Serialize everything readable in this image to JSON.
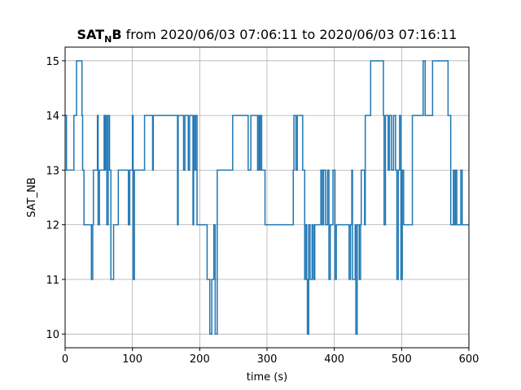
{
  "chart_data": {
    "type": "line",
    "step": true,
    "title_bold": "SAT",
    "title_subscript": "N",
    "title_bold_suffix": "B",
    "title_rest": " from 2020/06/03 07:06:11 to 2020/06/03 07:16:11",
    "xlabel": "time (s)",
    "ylabel": "SAT_NB",
    "xlim": [
      0,
      600
    ],
    "ylim": [
      9.75,
      15.25
    ],
    "xticks": [
      0,
      100,
      200,
      300,
      400,
      500,
      600
    ],
    "xtick_labels": [
      "0",
      "100",
      "200",
      "300",
      "400",
      "500",
      "600"
    ],
    "yticks": [
      10,
      11,
      12,
      13,
      14,
      15
    ],
    "ytick_labels": [
      "10",
      "11",
      "12",
      "13",
      "14",
      "15"
    ],
    "grid": true,
    "color": "#1f77b4",
    "series": [
      {
        "points": [
          [
            0,
            14
          ],
          [
            2,
            13
          ],
          [
            13,
            14
          ],
          [
            17,
            15
          ],
          [
            25,
            14
          ],
          [
            26,
            13
          ],
          [
            28,
            12
          ],
          [
            39,
            11
          ],
          [
            41,
            12
          ],
          [
            42,
            13
          ],
          [
            48,
            14
          ],
          [
            49,
            12
          ],
          [
            51,
            13
          ],
          [
            58,
            14
          ],
          [
            59,
            13
          ],
          [
            60,
            14
          ],
          [
            62,
            12
          ],
          [
            64,
            14
          ],
          [
            66,
            13
          ],
          [
            68,
            11
          ],
          [
            72,
            12
          ],
          [
            79,
            13
          ],
          [
            94,
            12
          ],
          [
            96,
            13
          ],
          [
            100,
            14
          ],
          [
            101,
            11
          ],
          [
            103,
            13
          ],
          [
            118,
            14
          ],
          [
            130,
            13
          ],
          [
            131,
            14
          ],
          [
            167,
            12
          ],
          [
            168,
            14
          ],
          [
            176,
            13
          ],
          [
            178,
            14
          ],
          [
            183,
            13
          ],
          [
            185,
            14
          ],
          [
            190,
            12
          ],
          [
            191,
            14
          ],
          [
            192,
            13
          ],
          [
            194,
            14
          ],
          [
            196,
            12
          ],
          [
            205,
            12
          ],
          [
            211,
            11
          ],
          [
            215,
            10
          ],
          [
            218,
            11
          ],
          [
            221,
            12
          ],
          [
            223,
            10
          ],
          [
            226,
            13
          ],
          [
            249,
            14
          ],
          [
            272,
            13
          ],
          [
            276,
            14
          ],
          [
            286,
            13
          ],
          [
            288,
            14
          ],
          [
            289,
            13
          ],
          [
            290,
            14
          ],
          [
            292,
            13
          ],
          [
            297,
            12
          ],
          [
            339,
            13
          ],
          [
            340,
            14
          ],
          [
            343,
            13
          ],
          [
            345,
            14
          ],
          [
            353,
            13
          ],
          [
            356,
            11
          ],
          [
            357,
            12
          ],
          [
            359,
            11
          ],
          [
            360,
            10
          ],
          [
            362,
            12
          ],
          [
            364,
            11
          ],
          [
            367,
            12
          ],
          [
            369,
            11
          ],
          [
            371,
            12
          ],
          [
            380,
            13
          ],
          [
            382,
            12
          ],
          [
            384,
            13
          ],
          [
            387,
            12
          ],
          [
            390,
            13
          ],
          [
            392,
            11
          ],
          [
            394,
            12
          ],
          [
            398,
            13
          ],
          [
            401,
            11
          ],
          [
            403,
            12
          ],
          [
            419,
            12
          ],
          [
            422,
            11
          ],
          [
            424,
            12
          ],
          [
            426,
            13
          ],
          [
            427,
            11
          ],
          [
            431,
            12
          ],
          [
            432,
            10
          ],
          [
            434,
            12
          ],
          [
            437,
            11
          ],
          [
            439,
            12
          ],
          [
            440,
            13
          ],
          [
            445,
            12
          ],
          [
            446,
            14
          ],
          [
            454,
            15
          ],
          [
            473,
            14
          ],
          [
            474,
            12
          ],
          [
            476,
            14
          ],
          [
            480,
            13
          ],
          [
            482,
            14
          ],
          [
            485,
            13
          ],
          [
            488,
            14
          ],
          [
            491,
            13
          ],
          [
            493,
            11
          ],
          [
            495,
            13
          ],
          [
            497,
            14
          ],
          [
            499,
            11
          ],
          [
            501,
            13
          ],
          [
            503,
            12
          ],
          [
            516,
            14
          ],
          [
            532,
            15
          ],
          [
            535,
            14
          ],
          [
            546,
            15
          ],
          [
            569,
            14
          ],
          [
            573,
            12
          ],
          [
            577,
            13
          ],
          [
            578,
            12
          ],
          [
            580,
            13
          ],
          [
            582,
            12
          ],
          [
            588,
            13
          ],
          [
            590,
            12
          ],
          [
            600,
            12
          ]
        ]
      }
    ]
  }
}
